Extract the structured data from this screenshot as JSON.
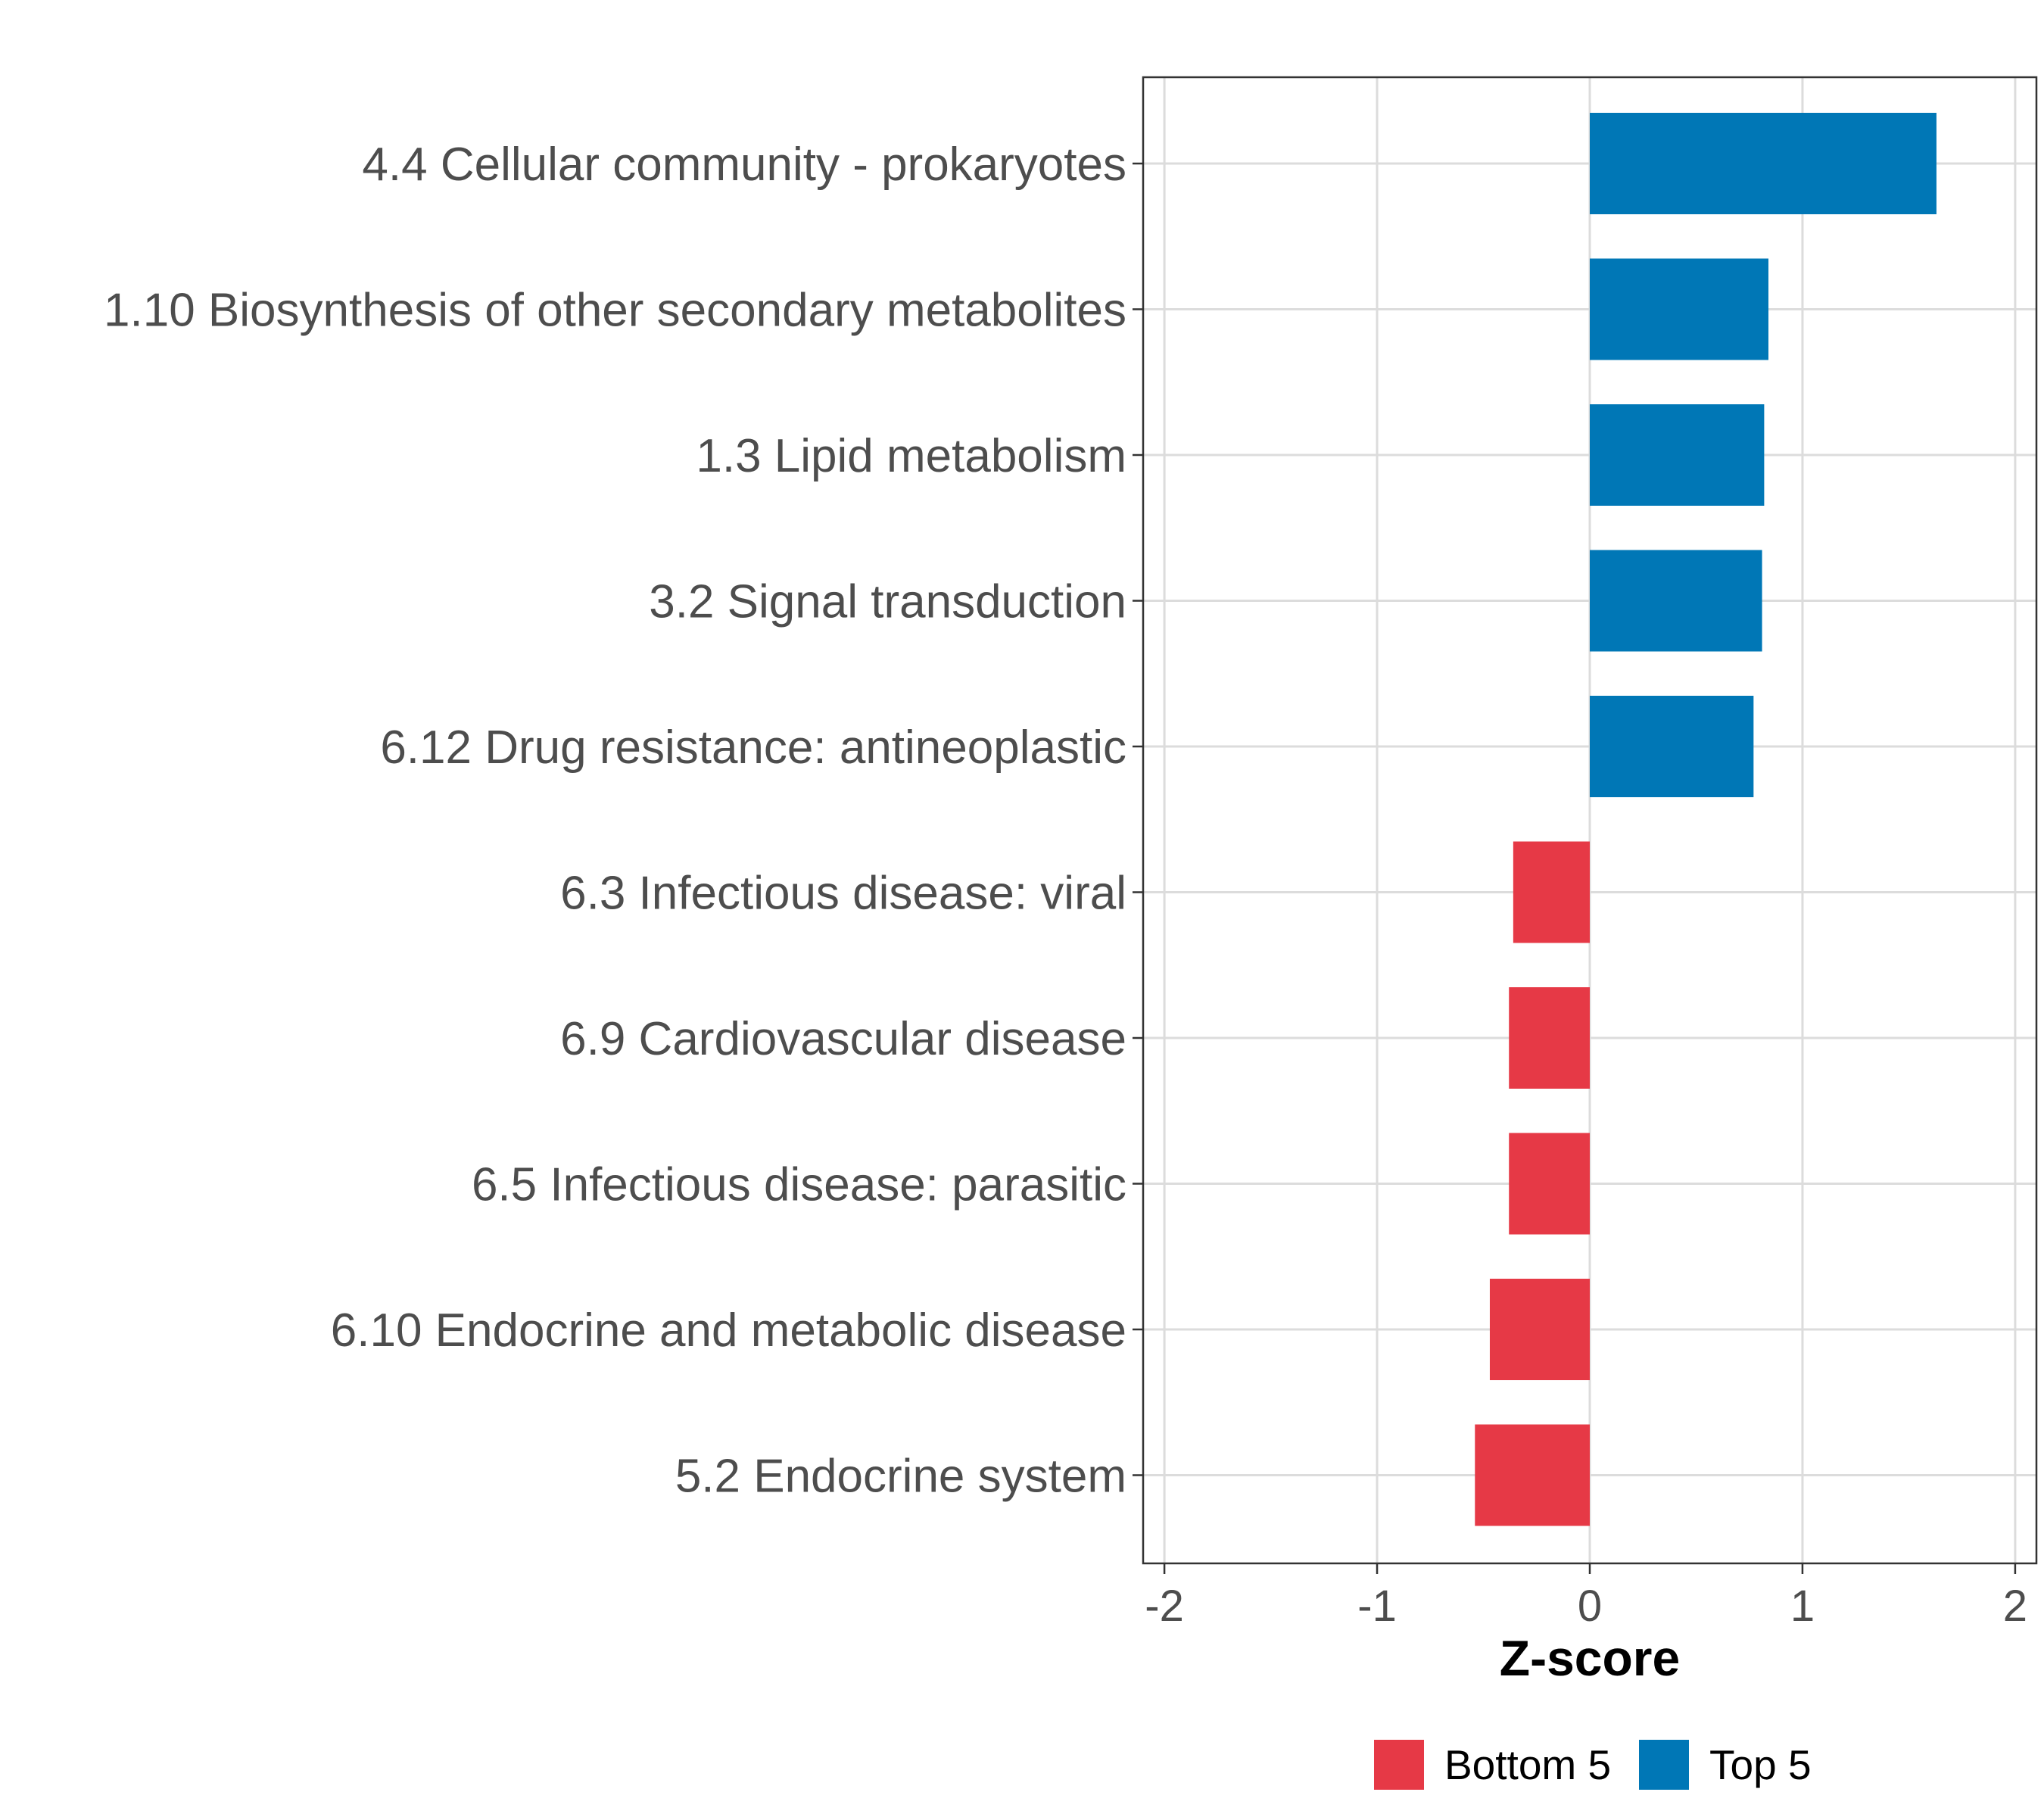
{
  "chart_data": {
    "type": "bar",
    "orientation": "horizontal",
    "xlabel": "Z-score",
    "xlim": [
      -2.1,
      2.1
    ],
    "xticks": [
      -2,
      -1,
      0,
      1,
      2
    ],
    "xtick_labels": [
      "-2",
      "-1",
      "0",
      "1",
      "2"
    ],
    "categories": [
      "4.4 Cellular community - prokaryotes",
      "1.10 Biosynthesis of other secondary metabolites",
      "1.3 Lipid metabolism",
      "3.2 Signal transduction",
      "6.12 Drug resistance: antineoplastic",
      "6.3 Infectious disease: viral",
      "6.9 Cardiovascular disease",
      "6.5 Infectious disease: parasitic",
      "6.10 Endocrine and metabolic disease",
      "5.2 Endocrine system"
    ],
    "values": [
      1.63,
      0.84,
      0.82,
      0.81,
      0.77,
      -0.36,
      -0.38,
      -0.38,
      -0.47,
      -0.54
    ],
    "groups": [
      "Top 5",
      "Top 5",
      "Top 5",
      "Top 5",
      "Top 5",
      "Bottom 5",
      "Bottom 5",
      "Bottom 5",
      "Bottom 5",
      "Bottom 5"
    ],
    "legend": [
      {
        "label": "Bottom 5",
        "color": "#E63946"
      },
      {
        "label": "Top 5",
        "color": "#0077B6"
      }
    ],
    "legend_position": "bottom",
    "grid": true
  }
}
